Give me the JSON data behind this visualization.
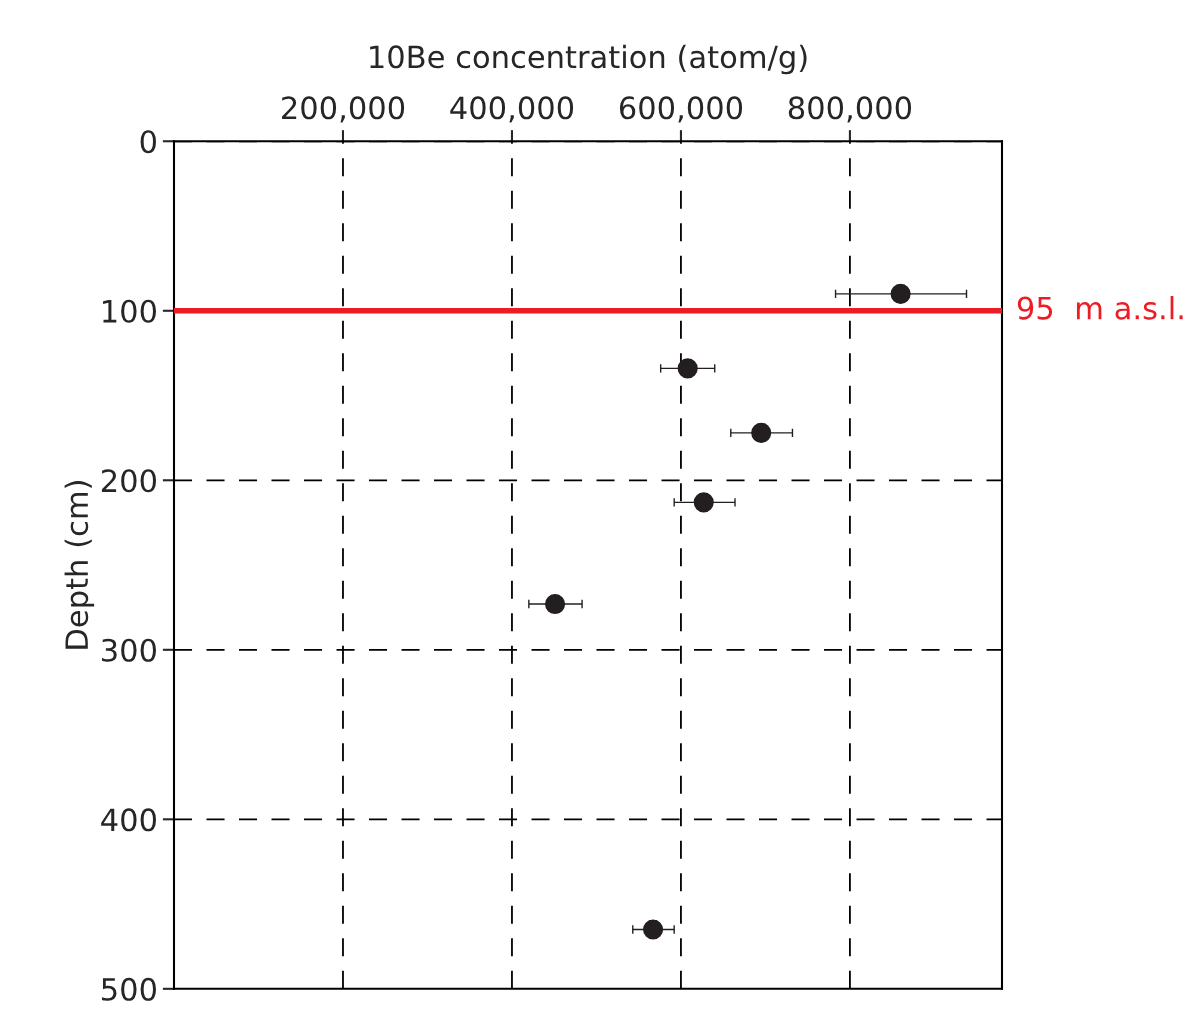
{
  "chart_data": {
    "type": "scatter",
    "xlabel": "10Be concentration (atom/g)",
    "ylabel": "Depth (cm)",
    "x": [
      860000,
      608000,
      695000,
      627000,
      451000,
      567000
    ],
    "values": [
      90,
      134,
      172,
      213,
      273,
      465
    ],
    "xerrors": [
      [
        783000,
        938000
      ],
      [
        576000,
        640000
      ],
      [
        659000,
        732000
      ],
      [
        592000,
        664000
      ],
      [
        420000,
        483000
      ],
      [
        543000,
        592000
      ]
    ],
    "errors": [
      5,
      5,
      5,
      5,
      5,
      5
    ],
    "color": "#231f20",
    "marker": "circle",
    "xlim": [
      0,
      980000
    ],
    "ylim": [
      500,
      0
    ],
    "xticks": [
      {
        "value": 200000,
        "label": "200,000"
      },
      {
        "value": 400000,
        "label": "400,000"
      },
      {
        "value": 600000,
        "label": "600,000"
      },
      {
        "value": 800000,
        "label": "800,000"
      }
    ],
    "yticks": [
      0,
      100,
      200,
      300,
      400,
      500
    ],
    "grid": true,
    "ref_lines": [
      {
        "axis": "y",
        "value": 100,
        "label": "95  m a.s.l.",
        "color": "#ed1c24",
        "line_style": "solid"
      }
    ]
  }
}
